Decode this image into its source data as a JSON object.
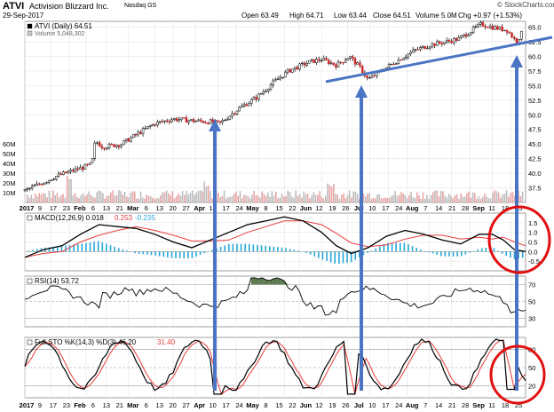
{
  "header": {
    "symbol": "ATVI",
    "company": "Activision Blizzard Inc.",
    "exchange": "Nasdaq GS",
    "date": "29-Sep-2017",
    "open": "Open 63.49",
    "high": "High 64.71",
    "low": "Low 63.44",
    "close": "Close 64.51",
    "volume": "Volume 5.0M",
    "change": "Chg +0.97 (+1.53%)",
    "brand": "© StockCharts.com"
  },
  "chart_data": [
    {
      "type": "line",
      "panel": "price",
      "legend": [
        {
          "label": "ATVI (Daily) 64.51",
          "color": "#000000"
        },
        {
          "label": "Volume 5,048,302",
          "color": "#999999"
        }
      ],
      "series": [
        {
          "name": "ATVI (Daily) 64.51",
          "x": [
            "2017-01-03",
            "2017-01-20",
            "2017-02-08",
            "2017-02-10",
            "2017-02-14",
            "2017-02-24",
            "2017-03-06",
            "2017-03-14",
            "2017-03-24",
            "2017-04-03",
            "2017-04-13",
            "2017-04-18",
            "2017-04-28",
            "2017-05-08",
            "2017-05-17",
            "2017-05-25",
            "2017-06-05",
            "2017-06-12",
            "2017-06-20",
            "2017-06-27",
            "2017-07-03",
            "2017-07-07",
            "2017-07-14",
            "2017-07-24",
            "2017-08-01",
            "2017-08-10",
            "2017-08-18",
            "2017-08-25",
            "2017-09-06",
            "2017-09-12",
            "2017-09-20",
            "2017-09-25",
            "2017-09-29"
          ],
          "y": [
            37.0,
            39.5,
            41.5,
            45.5,
            44.5,
            45.0,
            47.0,
            48.5,
            49.3,
            49.0,
            48.8,
            48.5,
            51.0,
            53.0,
            55.5,
            57.5,
            59.0,
            59.5,
            58.5,
            60.0,
            58.0,
            56.0,
            57.5,
            59.5,
            61.0,
            62.0,
            62.5,
            63.0,
            65.5,
            65.0,
            64.5,
            62.5,
            64.51
          ]
        }
      ],
      "yticks": [
        37.5,
        40.0,
        42.5,
        45.0,
        47.5,
        50.0,
        52.5,
        55.0,
        57.5,
        60.0,
        62.5,
        65.0
      ],
      "volume_ticks": [
        "60M",
        "50M",
        "40M",
        "30M",
        "20M",
        "10M"
      ],
      "ylim": [
        35,
        66
      ]
    },
    {
      "type": "line",
      "panel": "macd",
      "legend": [
        {
          "label": "MACD(12,26,9) 0.018",
          "color": "#000000"
        },
        {
          "label": "0.253",
          "color": "#e83a3a"
        },
        {
          "label": "-0.235",
          "color": "#2aa7d9"
        }
      ],
      "yticks": [
        1.5,
        1.0,
        0.5,
        0.0,
        -0.5
      ],
      "ylim": [
        -1.0,
        2.0
      ]
    },
    {
      "type": "line",
      "panel": "rsi",
      "legend": [
        {
          "label": "RSI(14) 53.72",
          "color": "#000000"
        }
      ],
      "yticks": [
        70,
        50,
        30
      ],
      "ylim": [
        20,
        80
      ]
    },
    {
      "type": "line",
      "panel": "sto",
      "legend": [
        {
          "label": "Full STO %K(14,3) %D(3) 46.20",
          "color": "#000000"
        },
        {
          "label": "31.40",
          "color": "#e83a3a"
        }
      ],
      "yticks": [
        80,
        50,
        20
      ],
      "ylim": [
        0,
        100
      ]
    }
  ],
  "x_axis_top": [
    "2017",
    "9",
    "17",
    "23",
    "Feb",
    "6",
    "13",
    "21",
    "Mar",
    "6",
    "13",
    "20",
    "27",
    "Apr",
    "10",
    "17",
    "24",
    "May",
    "8",
    "15",
    "22",
    "Jun",
    "12",
    "19",
    "26",
    "Jul",
    "10",
    "17",
    "24",
    "Aug",
    "7",
    "14",
    "21",
    "28",
    "Sep",
    "11",
    "18",
    "25"
  ],
  "x_axis_bottom": [
    "2017",
    "9",
    "17",
    "23",
    "Feb",
    "6",
    "13",
    "21",
    "Mar",
    "6",
    "13",
    "20",
    "27",
    "Apr",
    "10",
    "17",
    "24",
    "May",
    "8",
    "15",
    "22",
    "Jun",
    "12",
    "19",
    "26",
    "Jul",
    "10",
    "17",
    "24",
    "Aug",
    "7",
    "14",
    "21",
    "28",
    "Sep",
    "11",
    "18",
    "25"
  ],
  "annotations": {
    "trendline_color": "#4a74c4",
    "arrow_color": "#4a74c4",
    "circle_color": "#e10f0f"
  }
}
